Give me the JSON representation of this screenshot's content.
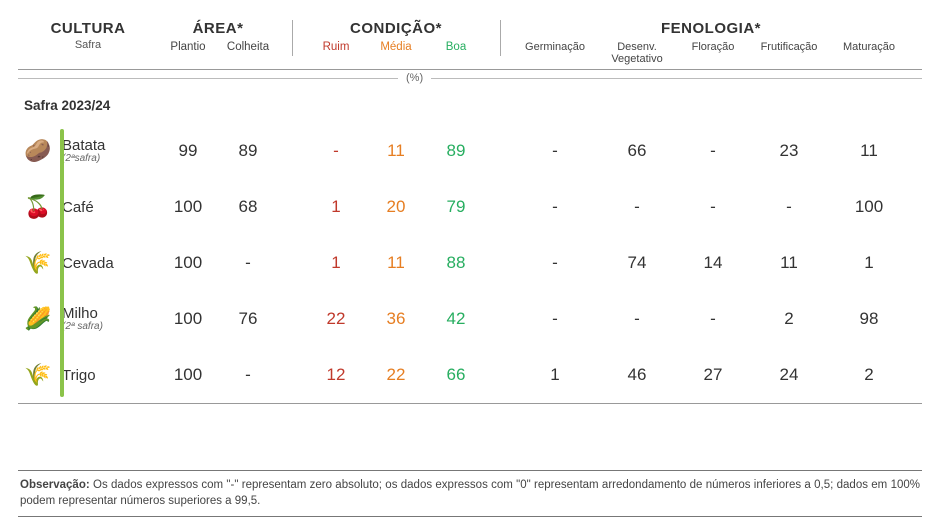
{
  "headers": {
    "cultura": "CULTURA",
    "cultura_sub": "Safra",
    "area": "ÁREA*",
    "area_plantio": "Plantio",
    "area_colheita": "Colheita",
    "condicao": "CONDIÇÃO*",
    "cond_ruim": "Ruim",
    "cond_media": "Média",
    "cond_boa": "Boa",
    "fenologia": "FENOLOGIA*",
    "fen_germinacao": "Germinação",
    "fen_desenv1": "Desenv.",
    "fen_desenv2": "Vegetativo",
    "fen_floracao": "Floração",
    "fen_frutificacao": "Frutificação",
    "fen_maturacao": "Maturação",
    "percent": "(%)"
  },
  "season": "Safra 2023/24",
  "crops": [
    {
      "icon": "🥔",
      "name": "Batata",
      "sub": "(2ªsafra)",
      "plantio": "99",
      "colheita": "89",
      "ruim": "-",
      "media": "11",
      "boa": "89",
      "germ": "-",
      "desenv": "66",
      "flor": "-",
      "frut": "23",
      "mat": "11"
    },
    {
      "icon": "🍒",
      "name": "Café",
      "sub": "",
      "plantio": "100",
      "colheita": "68",
      "ruim": "1",
      "media": "20",
      "boa": "79",
      "germ": "-",
      "desenv": "-",
      "flor": "-",
      "frut": "-",
      "mat": "100"
    },
    {
      "icon": "🌾",
      "name": "Cevada",
      "sub": "",
      "plantio": "100",
      "colheita": "-",
      "ruim": "1",
      "media": "11",
      "boa": "88",
      "germ": "-",
      "desenv": "74",
      "flor": "14",
      "frut": "11",
      "mat": "1"
    },
    {
      "icon": "🌽",
      "name": "Milho",
      "sub": "(2ª safra)",
      "plantio": "100",
      "colheita": "76",
      "ruim": "22",
      "media": "36",
      "boa": "42",
      "germ": "-",
      "desenv": "-",
      "flor": "-",
      "frut": "2",
      "mat": "98"
    },
    {
      "icon": "🌾",
      "name": "Trigo",
      "sub": "",
      "plantio": "100",
      "colheita": "-",
      "ruim": "12",
      "media": "22",
      "boa": "66",
      "germ": "1",
      "desenv": "46",
      "flor": "27",
      "frut": "24",
      "mat": "2"
    }
  ],
  "observation": {
    "label": "Observação:",
    "text": " Os dados expressos com \"-\" representam zero absoluto; os dados expressos com \"0\" representam arredondamento de números inferiores a 0,5; dados em 100% podem representar números superiores a 99,5."
  },
  "colors": {
    "ruim": "#c0392b",
    "media": "#e67e22",
    "boa": "#27ae60",
    "text": "#333333",
    "accent_bar": "#8bc34a"
  }
}
